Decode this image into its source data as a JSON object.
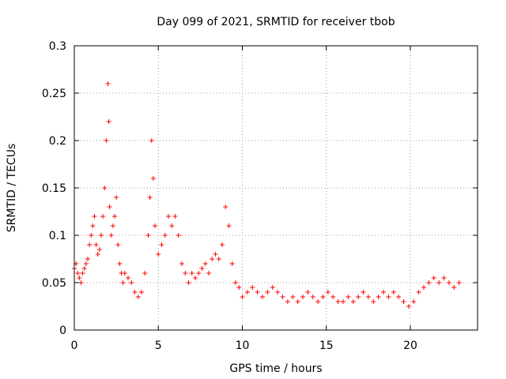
{
  "chart_data": {
    "type": "scatter",
    "title": "Day 099 of 2021, SRMTID for receiver tbob",
    "xlabel": "GPS time / hours",
    "ylabel": "SRMTID / TECUs",
    "xlim": [
      0,
      24
    ],
    "ylim": [
      0,
      0.3
    ],
    "x_ticks": [
      0,
      5,
      10,
      15,
      20
    ],
    "x_tick_labels": [
      "0",
      "5",
      "10",
      "15",
      "20"
    ],
    "y_ticks": [
      0,
      0.05,
      0.1,
      0.15,
      0.2,
      0.25,
      0.3
    ],
    "y_tick_labels": [
      "0",
      "0.05",
      "0.1",
      "0.15",
      "0.2",
      "0.25",
      "0.3"
    ],
    "grid": true,
    "marker": "plus",
    "color": "#ff0000",
    "series": [
      {
        "name": "SRMTID",
        "x": [
          0.0,
          0.1,
          0.2,
          0.3,
          0.4,
          0.5,
          0.6,
          0.7,
          0.8,
          0.9,
          1.0,
          1.1,
          1.2,
          1.3,
          1.4,
          1.5,
          1.6,
          1.7,
          1.8,
          1.9,
          2.0,
          2.05,
          2.1,
          2.2,
          2.3,
          2.4,
          2.5,
          2.6,
          2.7,
          2.8,
          2.9,
          3.0,
          3.2,
          3.4,
          3.6,
          3.8,
          4.0,
          4.2,
          4.4,
          4.5,
          4.6,
          4.7,
          4.8,
          5.0,
          5.2,
          5.4,
          5.6,
          5.8,
          6.0,
          6.2,
          6.4,
          6.6,
          6.8,
          7.0,
          7.2,
          7.4,
          7.6,
          7.8,
          8.0,
          8.2,
          8.4,
          8.6,
          8.8,
          9.0,
          9.2,
          9.4,
          9.6,
          9.8,
          10.0,
          10.3,
          10.6,
          10.9,
          11.2,
          11.5,
          11.8,
          12.1,
          12.4,
          12.7,
          13.0,
          13.3,
          13.6,
          13.9,
          14.2,
          14.5,
          14.8,
          15.1,
          15.4,
          15.7,
          16.0,
          16.3,
          16.6,
          16.9,
          17.2,
          17.5,
          17.8,
          18.1,
          18.4,
          18.7,
          19.0,
          19.3,
          19.6,
          19.9,
          20.2,
          20.5,
          20.8,
          21.1,
          21.4,
          21.7,
          22.0,
          22.3,
          22.6,
          22.9
        ],
        "y": [
          0.065,
          0.07,
          0.06,
          0.055,
          0.05,
          0.06,
          0.065,
          0.07,
          0.075,
          0.09,
          0.1,
          0.11,
          0.12,
          0.09,
          0.08,
          0.085,
          0.1,
          0.12,
          0.15,
          0.2,
          0.26,
          0.22,
          0.13,
          0.1,
          0.11,
          0.12,
          0.14,
          0.09,
          0.07,
          0.06,
          0.05,
          0.06,
          0.055,
          0.05,
          0.04,
          0.035,
          0.04,
          0.06,
          0.1,
          0.14,
          0.2,
          0.16,
          0.11,
          0.08,
          0.09,
          0.1,
          0.12,
          0.11,
          0.12,
          0.1,
          0.07,
          0.06,
          0.05,
          0.06,
          0.055,
          0.06,
          0.065,
          0.07,
          0.06,
          0.075,
          0.08,
          0.075,
          0.09,
          0.13,
          0.11,
          0.07,
          0.05,
          0.045,
          0.035,
          0.04,
          0.045,
          0.04,
          0.035,
          0.04,
          0.045,
          0.04,
          0.035,
          0.03,
          0.035,
          0.03,
          0.035,
          0.04,
          0.035,
          0.03,
          0.035,
          0.04,
          0.035,
          0.03,
          0.03,
          0.035,
          0.03,
          0.035,
          0.04,
          0.035,
          0.03,
          0.035,
          0.04,
          0.035,
          0.04,
          0.035,
          0.03,
          0.025,
          0.03,
          0.04,
          0.045,
          0.05,
          0.055,
          0.05,
          0.055,
          0.05,
          0.045,
          0.05
        ]
      }
    ]
  }
}
